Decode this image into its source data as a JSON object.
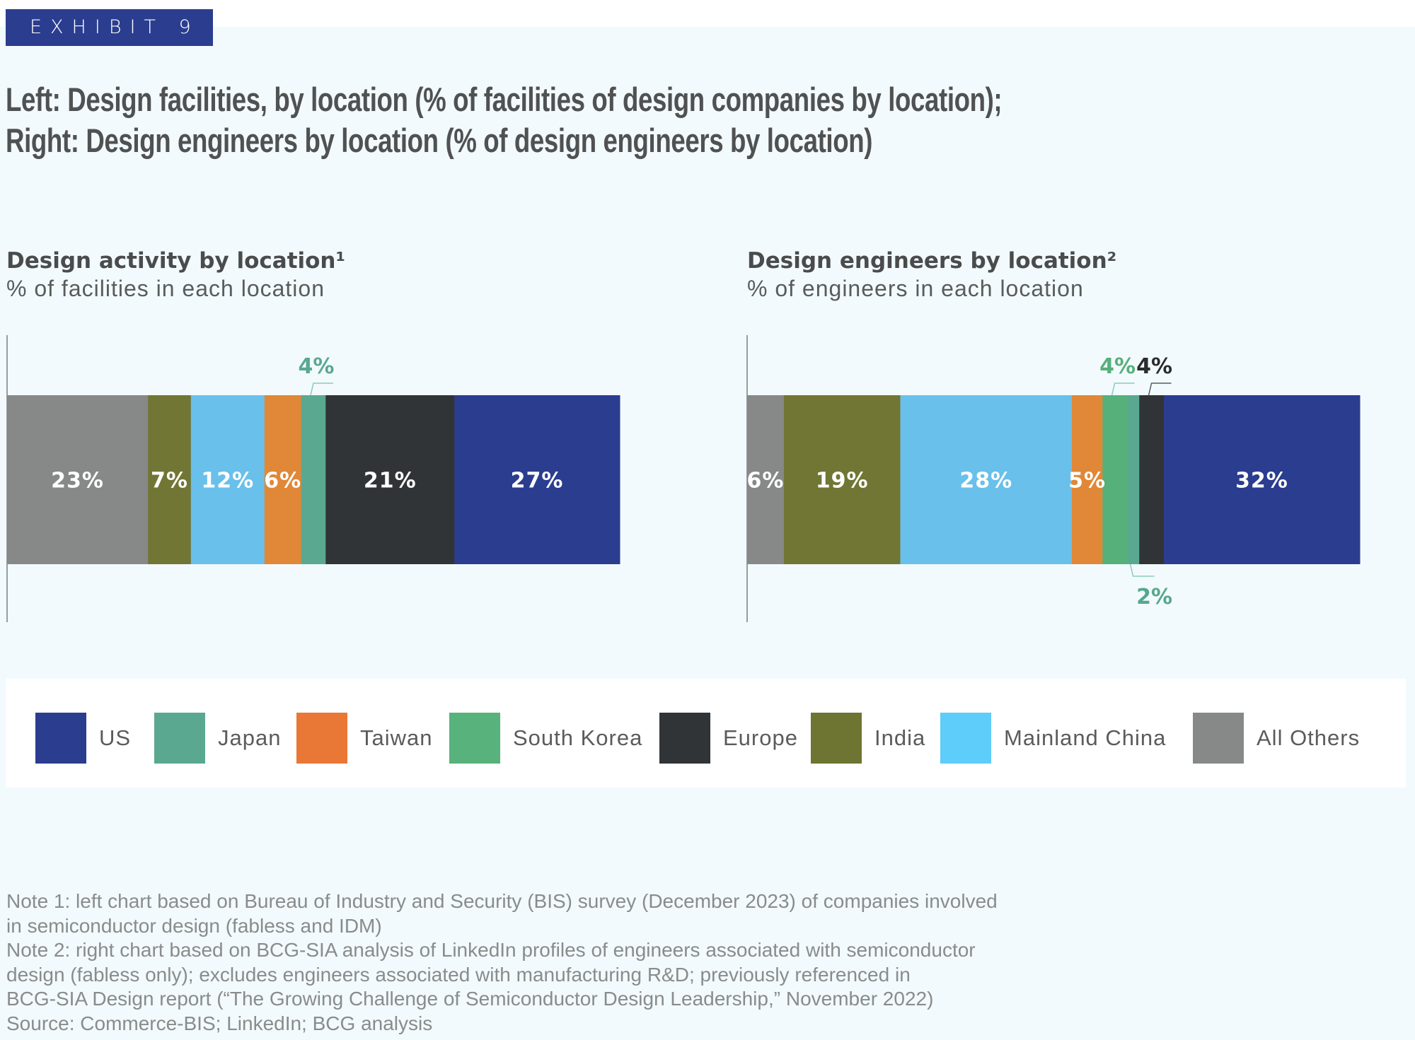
{
  "exhibit_label": "EXHIBIT 9",
  "title_lines": [
    "Left: Design facilities, by location (% of facilities of design companies by location);",
    "Right: Design engineers by location (% of design engineers by location)"
  ],
  "colors": {
    "US": "#2b3d8f",
    "Japan": "#5aa890",
    "Taiwan": "#e08838",
    "South Korea": "#56b07a",
    "Europe": "#303436",
    "India": "#717634",
    "Mainland China": "#69c0ea",
    "All Others": "#878888"
  },
  "legend": [
    {
      "label": "US",
      "color": "#2b3d8f"
    },
    {
      "label": "Japan",
      "color": "#5aa890"
    },
    {
      "label": "Taiwan",
      "color": "#e97736"
    },
    {
      "label": "South Korea",
      "color": "#58b27b"
    },
    {
      "label": "Europe",
      "color": "#303436"
    },
    {
      "label": "India",
      "color": "#6e7431"
    },
    {
      "label": "Mainland China",
      "color": "#5ecdfa"
    },
    {
      "label": "All Others",
      "color": "#878888"
    }
  ],
  "chart_data": [
    {
      "type": "bar",
      "stacked": true,
      "orientation": "horizontal",
      "title": "Design activity by location¹",
      "subtitle": "% of facilities in each location",
      "categories": [
        "All Others",
        "India",
        "Mainland China",
        "Taiwan",
        "Japan",
        "Europe",
        "US"
      ],
      "values": [
        23,
        7,
        12,
        6,
        4,
        21,
        27
      ],
      "labels": [
        "23%",
        "7%",
        "12%",
        "6%",
        "4%",
        "21%",
        "27%"
      ],
      "callouts": [
        {
          "category": "Japan",
          "label": "4%",
          "position": "above"
        }
      ],
      "xlim": [
        0,
        100
      ]
    },
    {
      "type": "bar",
      "stacked": true,
      "orientation": "horizontal",
      "title": "Design engineers by location²",
      "subtitle": "% of engineers in each location",
      "categories": [
        "All Others",
        "India",
        "Mainland China",
        "Taiwan",
        "South Korea",
        "Japan",
        "Europe",
        "US"
      ],
      "values": [
        6,
        19,
        28,
        5,
        4,
        2,
        4,
        32
      ],
      "labels": [
        "6%",
        "19%",
        "28%",
        "5%",
        "4%",
        "2%",
        "4%",
        "32%"
      ],
      "callouts": [
        {
          "category": "South Korea",
          "label": "4%",
          "position": "above"
        },
        {
          "category": "Europe",
          "label": "4%",
          "position": "above"
        },
        {
          "category": "Japan",
          "label": "2%",
          "position": "below"
        }
      ],
      "xlim": [
        0,
        100
      ]
    }
  ],
  "notes": [
    "Note 1: left chart based on Bureau of Industry and Security (BIS) survey (December 2023) of companies involved",
    "in semiconductor design (fabless and IDM)",
    "Note 2: right chart based on BCG-SIA analysis of LinkedIn profiles of engineers associated with semiconductor",
    "design (fabless only); excludes engineers associated with manufacturing R&D; previously referenced in",
    "BCG-SIA Design report (“The Growing Challenge of Semiconductor Design Leadership,” November 2022)",
    "Source: Commerce-BIS; LinkedIn; BCG analysis"
  ]
}
